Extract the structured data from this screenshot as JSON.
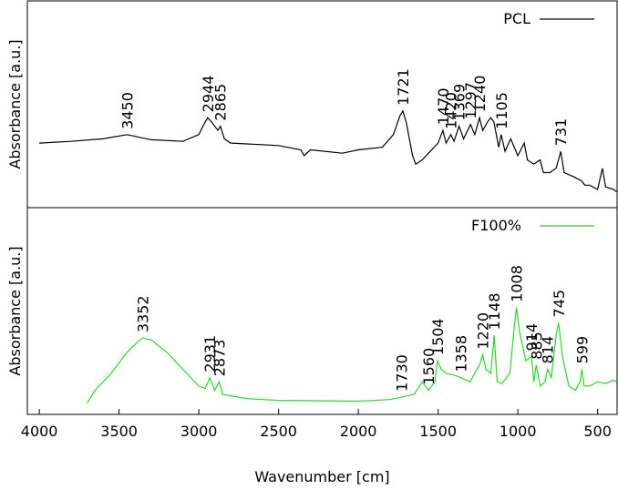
{
  "chart_data": [
    {
      "type": "line",
      "ylabel": "Absorbance [a.u.]",
      "xlim": [
        4075,
        378
      ],
      "ylim": [
        0,
        228
      ],
      "legend": "upper right",
      "x": [
        4000,
        3800,
        3600,
        3450,
        3300,
        3100,
        3000,
        2960,
        2944,
        2920,
        2880,
        2865,
        2840,
        2800,
        2500,
        2360,
        2340,
        2300,
        2100,
        2000,
        1850,
        1780,
        1740,
        1721,
        1700,
        1660,
        1640,
        1600,
        1550,
        1500,
        1470,
        1450,
        1420,
        1400,
        1369,
        1340,
        1297,
        1270,
        1240,
        1220,
        1190,
        1170,
        1150,
        1120,
        1105,
        1080,
        1045,
        1000,
        960,
        940,
        900,
        860,
        840,
        800,
        760,
        731,
        710,
        650,
        600,
        580,
        550,
        500,
        470,
        450,
        400,
        380
      ],
      "series": [
        {
          "name": "PCL",
          "color": "#000000",
          "values": [
            68,
            70,
            73,
            78,
            72,
            70,
            78,
            93,
            98,
            93,
            83,
            88,
            73,
            68,
            65,
            60,
            53,
            60,
            56,
            60,
            63,
            78,
            100,
            106,
            93,
            53,
            43,
            48,
            58,
            68,
            83,
            68,
            78,
            70,
            88,
            73,
            90,
            78,
            98,
            83,
            93,
            98,
            93,
            63,
            78,
            58,
            73,
            53,
            68,
            48,
            43,
            48,
            33,
            33,
            38,
            58,
            33,
            28,
            23,
            18,
            18,
            13,
            38,
            16,
            13,
            10
          ]
        }
      ],
      "peaks": [
        3450,
        2944,
        2865,
        1721,
        1470,
        1420,
        1369,
        1297,
        1240,
        1105,
        731
      ]
    },
    {
      "type": "line",
      "ylabel": "Absorbance [a.u.]",
      "xlabel": "Wavenumber [cm]",
      "xlim": [
        4075,
        378
      ],
      "ylim": [
        0,
        228
      ],
      "legend": "upper right",
      "xticks": [
        4000,
        3500,
        3000,
        2500,
        2000,
        1500,
        1000,
        500
      ],
      "x": [
        3700,
        3650,
        3550,
        3450,
        3380,
        3352,
        3300,
        3200,
        3100,
        3000,
        2960,
        2931,
        2900,
        2873,
        2850,
        2700,
        2500,
        2000,
        1800,
        1730,
        1650,
        1600,
        1560,
        1520,
        1504,
        1480,
        1450,
        1400,
        1358,
        1300,
        1240,
        1220,
        1200,
        1170,
        1148,
        1130,
        1100,
        1050,
        1020,
        1008,
        990,
        950,
        914,
        900,
        885,
        860,
        830,
        814,
        790,
        760,
        745,
        720,
        680,
        640,
        610,
        599,
        585,
        550,
        500,
        450,
        400,
        380
      ],
      "series": [
        {
          "name": "F100%",
          "color": "#22dd22",
          "values": [
            5,
            20,
            40,
            65,
            78,
            82,
            80,
            65,
            45,
            25,
            22,
            35,
            20,
            30,
            15,
            10,
            8,
            7,
            9,
            12,
            15,
            30,
            20,
            30,
            55,
            45,
            40,
            38,
            35,
            30,
            50,
            62,
            45,
            40,
            85,
            30,
            28,
            40,
            100,
            118,
            90,
            55,
            60,
            30,
            50,
            25,
            30,
            45,
            35,
            85,
            100,
            60,
            25,
            20,
            30,
            45,
            25,
            25,
            30,
            28,
            32,
            30
          ]
        }
      ],
      "peaks": [
        3352,
        2931,
        2873,
        1730,
        1560,
        1504,
        1358,
        1220,
        1148,
        1008,
        914,
        885,
        814,
        745,
        599
      ]
    }
  ]
}
